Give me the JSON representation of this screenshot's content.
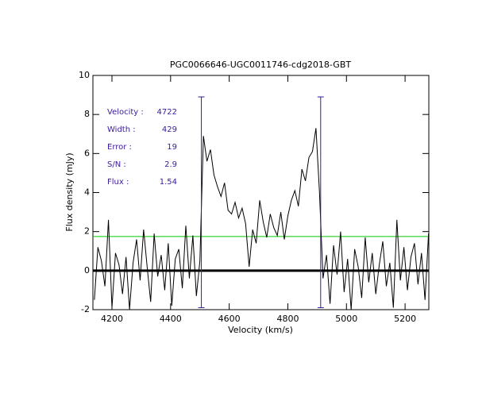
{
  "chart_data": {
    "type": "line",
    "title": "PGC0066646-UGC0011746-cdg2018-GBT",
    "xlabel": "Velocity (km/s)",
    "ylabel": "Flux density (mJy)",
    "xlim": [
      4135,
      5281
    ],
    "ylim": [
      -2,
      10
    ],
    "xticks": [
      4200,
      4400,
      4600,
      4800,
      5000,
      5200
    ],
    "yticks": [
      -2,
      0,
      2,
      4,
      6,
      8,
      10
    ],
    "x": [
      4140,
      4152,
      4164,
      4176,
      4188,
      4200,
      4212,
      4224,
      4236,
      4248,
      4260,
      4272,
      4284,
      4296,
      4308,
      4320,
      4332,
      4344,
      4356,
      4368,
      4380,
      4392,
      4404,
      4416,
      4428,
      4440,
      4452,
      4464,
      4476,
      4488,
      4500,
      4512,
      4524,
      4536,
      4548,
      4560,
      4572,
      4584,
      4596,
      4608,
      4620,
      4632,
      4644,
      4656,
      4668,
      4680,
      4692,
      4704,
      4716,
      4728,
      4740,
      4752,
      4764,
      4776,
      4788,
      4800,
      4812,
      4824,
      4836,
      4848,
      4860,
      4872,
      4884,
      4896,
      4908,
      4920,
      4932,
      4944,
      4956,
      4968,
      4980,
      4992,
      5004,
      5016,
      5028,
      5040,
      5052,
      5064,
      5076,
      5088,
      5100,
      5112,
      5124,
      5136,
      5148,
      5160,
      5172,
      5184,
      5196,
      5208,
      5220,
      5232,
      5244,
      5256,
      5268,
      5280
    ],
    "series": [
      {
        "color": "#000000",
        "values": [
          -1.5,
          1.2,
          0.5,
          -0.8,
          2.6,
          -1.9,
          0.9,
          0.3,
          -1.2,
          0.7,
          -2.0,
          0.4,
          1.6,
          -0.5,
          2.1,
          0.2,
          -1.6,
          1.9,
          -0.3,
          0.8,
          -1.0,
          1.4,
          -1.8,
          0.6,
          1.1,
          -0.9,
          2.3,
          -0.4,
          1.8,
          -1.3,
          0.5,
          6.9,
          5.6,
          6.2,
          4.9,
          4.3,
          3.8,
          4.5,
          3.1,
          2.9,
          3.5,
          2.7,
          3.2,
          2.4,
          0.2,
          2.1,
          1.4,
          3.6,
          2.5,
          1.7,
          2.9,
          2.2,
          1.8,
          3.0,
          1.6,
          2.8,
          3.6,
          4.1,
          3.3,
          5.2,
          4.6,
          5.8,
          6.1,
          7.3,
          4.0,
          -0.4,
          0.8,
          -1.7,
          1.3,
          -0.2,
          2.0,
          -1.1,
          0.6,
          -2.0,
          1.1,
          0.2,
          -1.4,
          1.7,
          -0.6,
          0.9,
          -1.2,
          0.3,
          1.5,
          -0.8,
          0.4,
          -1.9,
          2.6,
          -0.5,
          1.2,
          -1.0,
          0.7,
          1.4,
          -0.7,
          0.9,
          -1.5,
          1.9
        ]
      }
    ],
    "hlines": [
      {
        "value": 0,
        "color": "#000000"
      },
      {
        "value": 1.75,
        "color": "#00cc00"
      }
    ],
    "vlines": {
      "x": [
        4505,
        4912
      ],
      "ymin": -1.9,
      "ymax": 8.9,
      "color": "#3a1a9a"
    },
    "annotations": [
      {
        "label": "Velocity :",
        "value": "4722"
      },
      {
        "label": "Width :",
        "value": "429"
      },
      {
        "label": "Error :",
        "value": "19"
      },
      {
        "label": "S/N :",
        "value": "2.9"
      },
      {
        "label": "Flux :",
        "value": "1.54"
      }
    ]
  }
}
